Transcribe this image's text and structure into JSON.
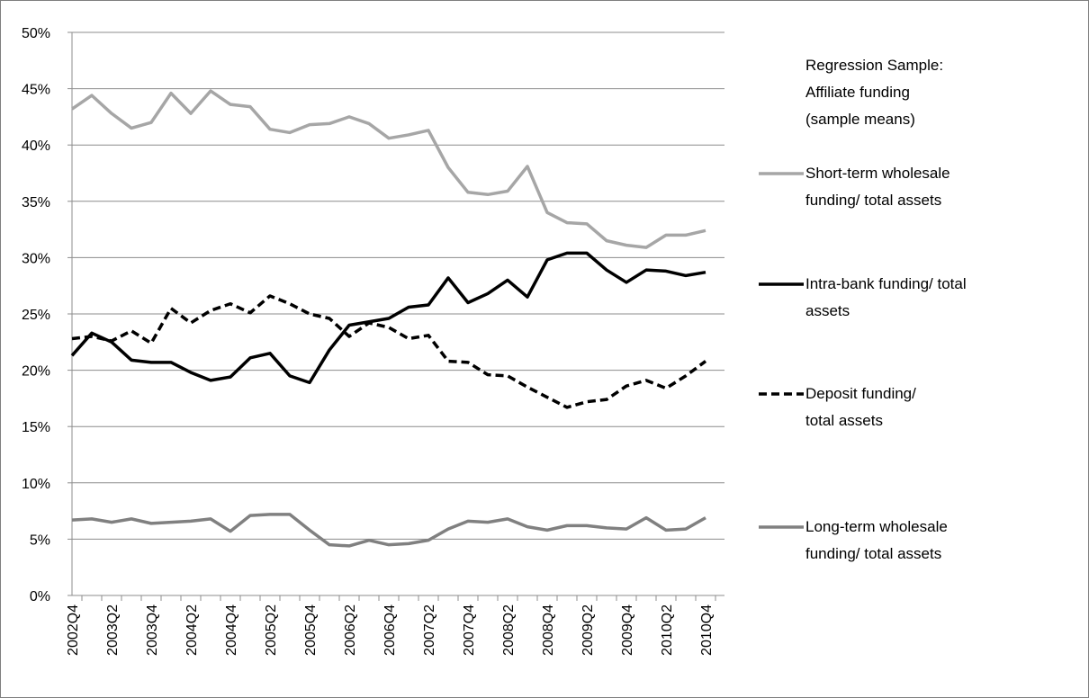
{
  "chart_data": {
    "type": "line",
    "legend_title": "Regression Sample: Affiliate funding (sample means)",
    "categories": [
      "2002Q4",
      null,
      "2003Q2",
      null,
      "2003Q4",
      null,
      "2004Q2",
      null,
      "2004Q4",
      null,
      "2005Q2",
      null,
      "2005Q4",
      null,
      "2006Q2",
      null,
      "2006Q4",
      null,
      "2007Q2",
      null,
      "2007Q4",
      null,
      "2008Q2",
      null,
      "2008Q4",
      null,
      "2009Q2",
      null,
      "2009Q4",
      null,
      "2010Q2",
      null,
      "2010Q4"
    ],
    "series": [
      {
        "name": "Short-term wholesale funding/ total assets",
        "color": "#a6a6a6",
        "style": "solid",
        "values": [
          43.2,
          44.4,
          42.8,
          41.5,
          42.0,
          44.6,
          42.8,
          44.8,
          43.6,
          43.4,
          41.4,
          41.1,
          41.8,
          41.9,
          42.5,
          41.9,
          40.6,
          40.9,
          41.3,
          38.0,
          35.8,
          35.6,
          35.9,
          38.1,
          34.0,
          33.1,
          33.0,
          31.5,
          31.1,
          30.9,
          32.0,
          32.0,
          32.4
        ]
      },
      {
        "name": "Intra-bank funding/ total assets",
        "color": "#000000",
        "style": "solid",
        "values": [
          21.3,
          23.3,
          22.5,
          20.9,
          20.7,
          20.7,
          19.8,
          19.1,
          19.4,
          21.1,
          21.5,
          19.5,
          18.9,
          21.8,
          24.0,
          24.3,
          24.6,
          25.6,
          25.8,
          28.2,
          26.0,
          26.8,
          28.0,
          26.5,
          29.8,
          30.4,
          30.4,
          28.9,
          27.8,
          28.9,
          28.8,
          28.4,
          28.7
        ]
      },
      {
        "name": "Deposit funding/ total assets",
        "color": "#000000",
        "style": "dashed",
        "values": [
          22.8,
          23.0,
          22.6,
          23.5,
          22.4,
          25.5,
          24.2,
          25.3,
          25.9,
          25.1,
          26.6,
          25.9,
          25.0,
          24.6,
          23.0,
          24.2,
          23.8,
          22.8,
          23.1,
          20.8,
          20.7,
          19.6,
          19.5,
          18.5,
          17.6,
          16.7,
          17.2,
          17.4,
          18.6,
          19.1,
          18.4,
          19.5,
          20.8
        ]
      },
      {
        "name": "Long-term wholesale funding/ total assets",
        "color": "#808080",
        "style": "solid",
        "values": [
          6.7,
          6.8,
          6.5,
          6.8,
          6.4,
          6.5,
          6.6,
          6.8,
          5.7,
          7.1,
          7.2,
          7.2,
          5.8,
          4.5,
          4.4,
          4.9,
          4.5,
          4.6,
          4.9,
          5.9,
          6.6,
          6.5,
          6.8,
          6.1,
          5.8,
          6.2,
          6.2,
          6.0,
          5.9,
          6.9,
          5.8,
          5.9,
          6.9
        ]
      }
    ],
    "ylim": [
      0,
      50
    ],
    "yticks": [
      {
        "value": 0,
        "label": "0%"
      },
      {
        "value": 5,
        "label": "5%"
      },
      {
        "value": 10,
        "label": "10%"
      },
      {
        "value": 15,
        "label": "15%"
      },
      {
        "value": 20,
        "label": "20%"
      },
      {
        "value": 25,
        "label": "25%"
      },
      {
        "value": 30,
        "label": "30%"
      },
      {
        "value": 35,
        "label": "35%"
      },
      {
        "value": 40,
        "label": "40%"
      },
      {
        "value": 45,
        "label": "45%"
      },
      {
        "value": 50,
        "label": "50%"
      }
    ],
    "grid": true
  }
}
